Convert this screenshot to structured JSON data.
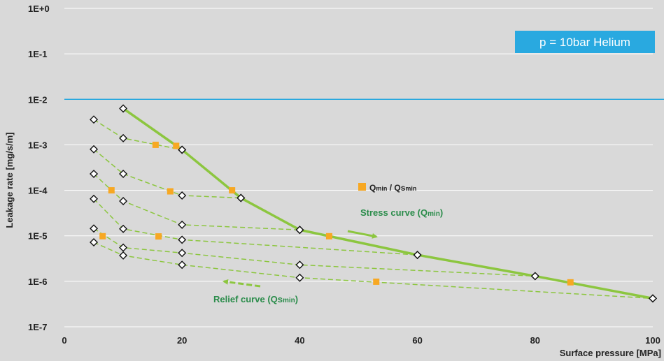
{
  "chart_data": {
    "type": "line",
    "xlabel": "Surface pressure [MPa]",
    "ylabel": "Leakage rate [mg/s/m]",
    "y_scale": "log",
    "xlim": [
      0,
      100
    ],
    "ylim": [
      1e-07,
      1
    ],
    "x_ticks": [
      "0",
      "20",
      "40",
      "60",
      "80",
      "100"
    ],
    "y_ticks": [
      "1E-7",
      "1E-6",
      "1E-5",
      "1E-4",
      "1E-3",
      "1E-2",
      "1E-1",
      "1E+0"
    ],
    "annotation_box": "p = 10bar Helium",
    "reference_line_y": 0.01,
    "legend": {
      "label_main": "Q",
      "sub1": "min",
      "sep": " / Qs",
      "sub2": "min"
    },
    "stress_label": {
      "main": "Stress curve (Q",
      "sub": "min",
      "end": ")"
    },
    "relief_label": {
      "main": "Relief curve (Qs",
      "sub": "min",
      "end": ")"
    },
    "stress_curve": {
      "x": [
        10,
        20,
        30,
        40,
        60,
        80,
        100
      ],
      "y": [
        0.0063,
        0.00078,
        6.8e-05,
        1.35e-05,
        3.8e-06,
        1.3e-06,
        4.2e-07
      ]
    },
    "relief_curves": [
      {
        "x": [
          5,
          10,
          20
        ],
        "y": [
          0.0036,
          0.0014,
          0.00078
        ]
      },
      {
        "x": [
          5,
          10,
          20,
          30
        ],
        "y": [
          0.0008,
          0.00023,
          7.7e-05,
          6.8e-05
        ]
      },
      {
        "x": [
          5,
          10,
          20,
          40
        ],
        "y": [
          0.00023,
          5.8e-05,
          1.75e-05,
          1.35e-05
        ]
      },
      {
        "x": [
          5,
          10,
          20,
          60
        ],
        "y": [
          6.5e-05,
          1.42e-05,
          8.2e-06,
          3.8e-06
        ]
      },
      {
        "x": [
          5,
          10,
          20,
          40,
          80
        ],
        "y": [
          1.45e-05,
          5.5e-06,
          4.2e-06,
          2.3e-06,
          1.3e-06
        ]
      },
      {
        "x": [
          5,
          10,
          20,
          40,
          100
        ],
        "y": [
          7.2e-06,
          3.7e-06,
          2.3e-06,
          1.2e-06,
          4.2e-07
        ]
      }
    ],
    "qmin_points": {
      "x": [
        15.5,
        19,
        28.5,
        45,
        86,
        8,
        18,
        6.5,
        16,
        53
      ],
      "y": [
        0.001,
        0.00095,
        0.0001,
        9.8e-06,
        9.5e-07,
        0.0001,
        9.5e-05,
        9.8e-06,
        9.7e-06,
        9.8e-07
      ]
    },
    "colors": {
      "background": "#d9d9d9",
      "gridline": "#ffffff",
      "reference_line": "#2aa9de",
      "stress_curve": "#8cc63f",
      "relief_curve": "#8cc63f",
      "qmin_marker": "#f7a823",
      "annotation_box": "#29a9e0",
      "label_text": "#2a8c4a",
      "axis_text": "#222222"
    }
  }
}
